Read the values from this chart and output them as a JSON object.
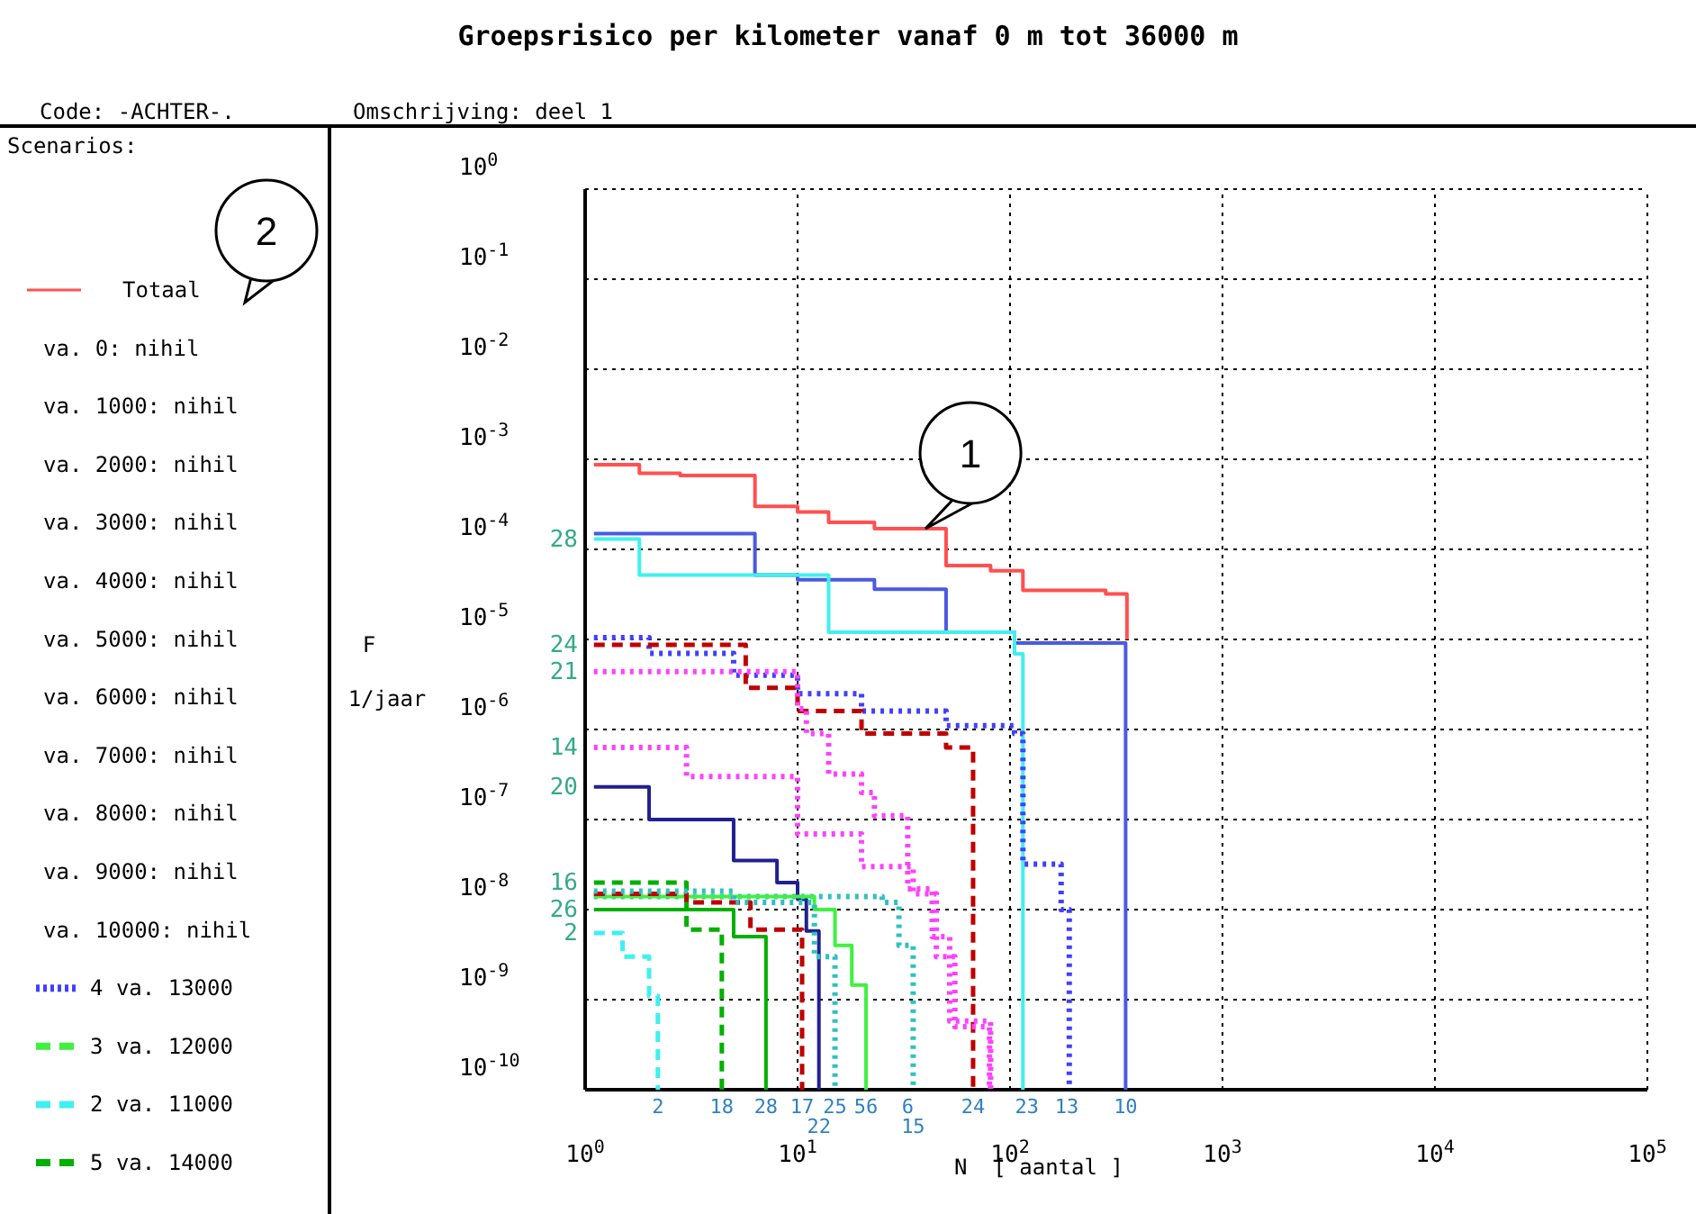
{
  "chart_data": {
    "type": "step",
    "title": "Groepsrisico per kilometer vanaf 0 m tot 36000 m",
    "subtitle": "Code: -ACHTER-.",
    "legend_title": "Scenarios:",
    "xlabel": "N  [ aantal ]",
    "ylabel": "F 1/jaar",
    "log": "xy",
    "grid": true,
    "legend": "left",
    "xlim": [
      1,
      100000
    ],
    "ylim": [
      1e-10,
      1
    ],
    "xticks": [
      {
        "value": 1,
        "label": "10$^{0}$"
      },
      {
        "value": 10,
        "label": "10$^{1}$"
      },
      {
        "value": 100,
        "label": "10$^{2}$"
      },
      {
        "value": 1000,
        "label": "10$^{3}$"
      },
      {
        "value": 10000,
        "label": "10$^{4}$"
      },
      {
        "value": 100000,
        "label": "10$^{5}$"
      }
    ],
    "yticks": [
      {
        "value": 1,
        "label": "10$^{0}$"
      },
      {
        "value": 0.1,
        "label": "10$^{-1}$"
      },
      {
        "value": 0.01,
        "label": "10$^{-2}$"
      },
      {
        "value": 0.001,
        "label": "10$^{-3}$"
      },
      {
        "value": 0.0001,
        "label": "10$^{-4}$"
      },
      {
        "value": 1e-05,
        "label": "10$^{-5}$"
      },
      {
        "value": 1e-06,
        "label": "10$^{-6}$"
      },
      {
        "value": 1e-07,
        "label": "10$^{-7}$"
      },
      {
        "value": 1e-08,
        "label": "10$^{-8}$"
      },
      {
        "value": 1e-09,
        "label": "10$^{-9}$"
      },
      {
        "value": 1e-10,
        "label": "10$^{-10}$"
      }
    ],
    "series": [
      {
        "name": "Totaal",
        "color": "#ff5050",
        "line_style": "solid",
        "x": [
          1.1,
          1.8,
          2.8,
          6.3,
          10,
          14,
          23,
          50,
          81,
          115,
          282,
          355
        ],
        "values": [
          0.00087,
          0.0007,
          0.00066,
          0.0003,
          0.00026,
          0.0002,
          0.00017,
          6.6e-05,
          5.8e-05,
          3.5e-05,
          3.2e-05,
          1e-05
        ]
      },
      {
        "color": "#4a5ae0",
        "line_style": "solid",
        "x": [
          1.1,
          6.3,
          10,
          23,
          50,
          105,
          350
        ],
        "values": [
          0.00015,
          5.2e-05,
          4.6e-05,
          3.6e-05,
          1.2e-05,
          9.1e-06,
          1e-10
        ]
      },
      {
        "color": "#40f0f0",
        "line_style": "solid",
        "x": [
          1.1,
          1.8,
          14,
          105,
          115
        ],
        "values": [
          0.00013,
          5.2e-05,
          1.2e-05,
          6.9e-06,
          1e-10
        ]
      },
      {
        "name": "4 va. 13000",
        "color": "#4040ff",
        "line_style": "dotted",
        "x": [
          1.1,
          2,
          5,
          10,
          20,
          50,
          105,
          115,
          174,
          190
        ],
        "values": [
          1.05e-05,
          7e-06,
          4e-06,
          2.5e-06,
          1.6e-06,
          1.1e-06,
          9e-07,
          3.2e-08,
          1e-08,
          1e-10
        ]
      },
      {
        "color": "#c00000",
        "line_style": "dashed",
        "x": [
          1.1,
          5.7,
          10,
          20,
          50,
          67
        ],
        "values": [
          8.7e-06,
          2.9e-06,
          1.6e-06,
          9e-07,
          6.3e-07,
          1e-10
        ]
      },
      {
        "color": "#ff40ff",
        "line_style": "dotted",
        "x": [
          1.1,
          10,
          11,
          14,
          20,
          23,
          33,
          43,
          52,
          81
        ],
        "values": [
          4.4e-06,
          1.7e-06,
          9e-07,
          3.2e-07,
          2e-07,
          1.1e-07,
          1.7e-08,
          5e-09,
          5.8e-10,
          1e-10
        ]
      },
      {
        "color": "#ff40ff",
        "line_style": "dotted",
        "x": [
          1.1,
          3,
          10,
          20,
          35,
          45,
          55,
          80
        ],
        "values": [
          6.3e-07,
          3e-07,
          6.9e-08,
          3e-08,
          1.5e-08,
          3e-09,
          5e-10,
          1e-10
        ]
      },
      {
        "color": "#202090",
        "line_style": "solid",
        "x": [
          1.1,
          2,
          5,
          8,
          10,
          11,
          12.6
        ],
        "values": [
          2.3e-07,
          1e-07,
          3.5e-08,
          2e-08,
          1.3e-08,
          5.8e-09,
          1e-10
        ]
      },
      {
        "color": "#30c0c0",
        "line_style": "dotted",
        "x": [
          1.1,
          10,
          25,
          30,
          35
        ],
        "values": [
          1.4e-08,
          1.4e-08,
          1.2e-08,
          4e-09,
          1e-10
        ]
      },
      {
        "name": "3 va. 12000",
        "color": "#40f040",
        "line_style": "solid",
        "x": [
          1.1,
          12,
          15,
          18,
          21
        ],
        "values": [
          1.4e-08,
          1e-08,
          4e-09,
          1.45e-09,
          1e-10
        ]
      },
      {
        "name": "2 va. 11000",
        "color": "#40f0f0",
        "line_style": "dashed",
        "x": [
          1.1,
          1.5,
          2,
          2.2
        ],
        "values": [
          5.5e-09,
          3e-09,
          1.1e-09,
          1e-10
        ]
      },
      {
        "name": "5 va. 14000",
        "color": "#00b000",
        "line_style": "dashed",
        "x": [
          1.1,
          3,
          4.4
        ],
        "values": [
          2e-08,
          6e-09,
          1e-10
        ]
      },
      {
        "color": "#00b000",
        "line_style": "solid",
        "x": [
          1.1,
          5,
          7.1
        ],
        "values": [
          1e-08,
          5e-09,
          1e-10
        ]
      },
      {
        "color": "#c00000",
        "line_style": "dashed",
        "x": [
          1.1,
          3,
          6,
          10.5
        ],
        "values": [
          1.5e-08,
          1.2e-08,
          6e-09,
          1e-10
        ]
      },
      {
        "color": "#30c0c0",
        "line_style": "dotted",
        "x": [
          1.1,
          5,
          12,
          15
        ],
        "values": [
          1.6e-08,
          1.2e-08,
          3e-09,
          1e-10
        ]
      }
    ],
    "annotations": [
      "Omschrijving: deel 1",
      "2",
      "va. 0: nihil",
      "va. 1000: nihil",
      "va. 2000: nihil",
      "va. 3000: nihil",
      "va. 4000: nihil",
      "va. 5000: nihil",
      "va. 6000: nihil",
      "va. 7000: nihil",
      "va. 8000: nihil",
      "va. 9000: nihil",
      "va. 10000: nihil",
      {
        "text": "1",
        "x": 40,
        "y": 0.00017
      },
      {
        "text": "28",
        "x": 1.1,
        "y": 0.00013
      },
      {
        "text": "24",
        "x": 1.1,
        "y": 8.7e-06
      },
      {
        "text": "21",
        "x": 1.1,
        "y": 4.4e-06
      },
      {
        "text": "14",
        "x": 1.1,
        "y": 6.3e-07
      },
      {
        "text": "20",
        "x": 1.1,
        "y": 2.3e-07
      },
      {
        "text": "16",
        "x": 1.1,
        "y": 2e-08
      },
      {
        "text": "26",
        "x": 1.1,
        "y": 1e-08
      },
      {
        "text": "2",
        "x": 1.1,
        "y": 5.5e-09
      },
      {
        "text": "2",
        "x": 2.2,
        "y": 1e-10
      },
      {
        "text": "18",
        "x": 4.4,
        "y": 1e-10
      },
      {
        "text": "28",
        "x": 7.1,
        "y": 1e-10
      },
      {
        "text": "17",
        "x": 10.5,
        "y": 1e-10
      },
      {
        "text": "22",
        "x": 12.6,
        "y": 1e-10
      },
      {
        "text": "25",
        "x": 15,
        "y": 1e-10
      },
      {
        "text": "56",
        "x": 21,
        "y": 1e-10
      },
      {
        "text": "6",
        "x": 33,
        "y": 1e-10
      },
      {
        "text": "15",
        "x": 35,
        "y": 1e-10
      },
      {
        "text": "24",
        "x": 67,
        "y": 1e-10
      },
      {
        "text": "23",
        "x": 120,
        "y": 1e-10
      },
      {
        "text": "13",
        "x": 185,
        "y": 1e-10
      },
      {
        "text": "10",
        "x": 350,
        "y": 1e-10
      }
    ]
  }
}
